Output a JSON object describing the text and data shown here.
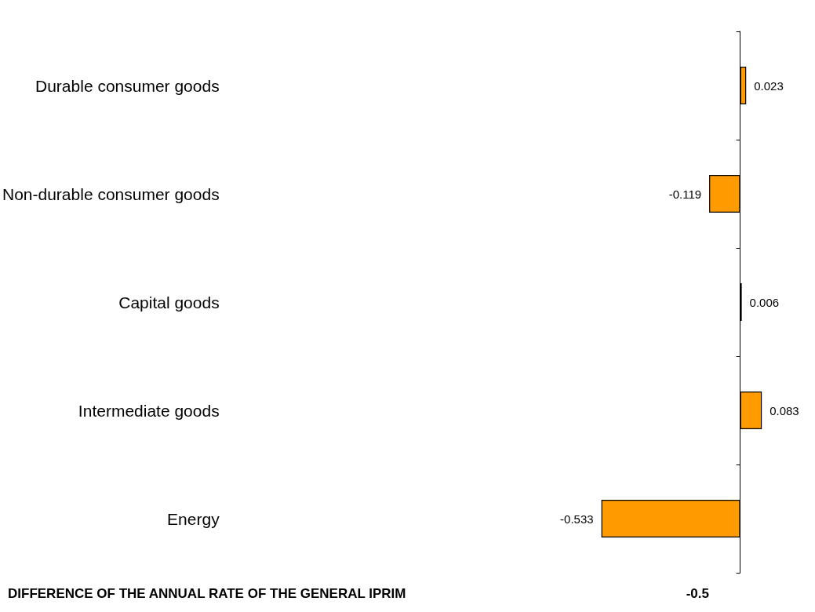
{
  "chart_data": {
    "type": "bar",
    "orientation": "horizontal",
    "categories": [
      "Durable consumer goods",
      "Non-durable consumer goods",
      "Capital goods",
      "Intermediate goods",
      "Energy"
    ],
    "values": [
      0.023,
      -0.119,
      0.006,
      0.083,
      -0.533
    ],
    "color": "#ff9b00",
    "data_labels": true,
    "annotations": [
      "DIFFERENCE OF THE ANNUAL RATE OF THE GENERAL IPRIM",
      "-0.5"
    ]
  }
}
